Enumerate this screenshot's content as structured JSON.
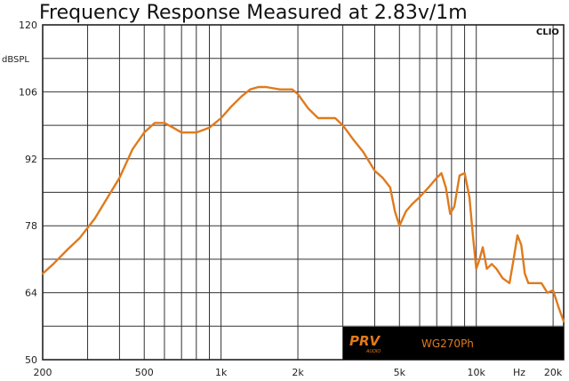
{
  "chart_data": {
    "type": "line",
    "title": "Frequency Response Measured at 2.83v/1m",
    "xscale": "log",
    "xlim": [
      200,
      22000
    ],
    "ylim": [
      50,
      120
    ],
    "ylabel": "dBSPL",
    "xunit": "Hz",
    "software_label": "CLIO",
    "grid": true,
    "x_tick_labels": [
      {
        "value": 200,
        "label": "200"
      },
      {
        "value": 500,
        "label": "500"
      },
      {
        "value": 1000,
        "label": "1k"
      },
      {
        "value": 2000,
        "label": "2k"
      },
      {
        "value": 5000,
        "label": "5k"
      },
      {
        "value": 10000,
        "label": "10k"
      },
      {
        "value": 20000,
        "label": "20k"
      }
    ],
    "y_ticks": [
      50,
      64,
      78,
      92,
      106,
      120
    ],
    "brand": {
      "name": "PRV",
      "subtext": "AUDIO",
      "model": "WG270Ph",
      "brand_color": "#e07a1c",
      "box_color": "#000000"
    },
    "series": [
      {
        "color": "#e07a1c",
        "x": [
          200,
          220,
          250,
          280,
          320,
          360,
          400,
          450,
          500,
          550,
          600,
          650,
          700,
          750,
          800,
          900,
          1000,
          1100,
          1200,
          1300,
          1400,
          1500,
          1700,
          1900,
          2000,
          2200,
          2400,
          2600,
          2800,
          3000,
          3300,
          3600,
          4000,
          4300,
          4600,
          4800,
          5000,
          5300,
          5600,
          6000,
          6500,
          7000,
          7300,
          7600,
          7900,
          8200,
          8600,
          9000,
          9400,
          9700,
          10000,
          10300,
          10600,
          11000,
          11500,
          12000,
          12700,
          13500,
          14000,
          14500,
          15000,
          15500,
          16000,
          17000,
          18000,
          19000,
          20000,
          21000,
          22000
        ],
        "y": [
          68,
          70,
          73,
          75.5,
          79.5,
          84,
          88,
          94,
          97.5,
          99.5,
          99.5,
          98.5,
          97.5,
          97.5,
          97.5,
          98.5,
          100.5,
          103,
          105,
          106.5,
          107,
          107,
          106.5,
          106.5,
          105.5,
          102.5,
          100.5,
          100.5,
          100.5,
          99,
          96,
          93.5,
          89.5,
          88,
          86,
          81,
          78,
          81,
          82.5,
          84,
          86,
          88,
          89,
          86,
          80.5,
          82,
          88.5,
          89,
          84,
          76,
          69,
          71,
          73.5,
          69,
          70,
          69,
          67,
          66,
          71,
          76,
          74,
          68,
          66,
          66,
          66,
          64,
          64.5,
          61,
          58
        ]
      }
    ]
  }
}
